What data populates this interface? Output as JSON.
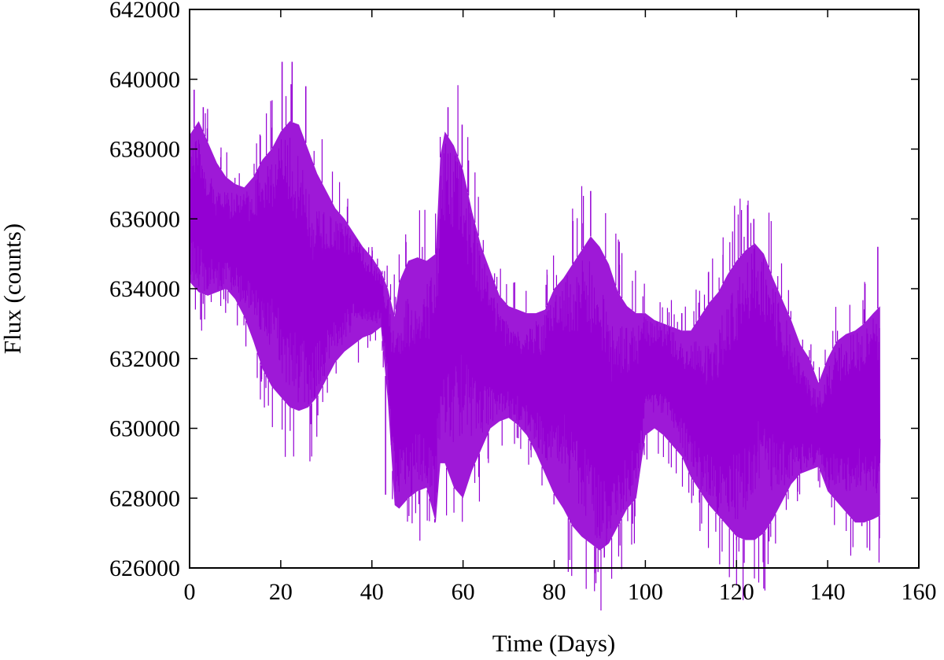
{
  "chart_data": {
    "type": "line",
    "title": "",
    "xlabel": "Time (Days)",
    "ylabel": "Flux (counts)",
    "xlim": [
      0,
      160
    ],
    "ylim": [
      626000,
      642000
    ],
    "xticks": [
      0,
      20,
      40,
      60,
      80,
      100,
      120,
      140,
      160
    ],
    "yticks": [
      626000,
      628000,
      630000,
      632000,
      634000,
      636000,
      638000,
      640000,
      642000
    ],
    "grid": false,
    "legend": "none",
    "series": [
      {
        "color": "#9400d3",
        "x": [
          0,
          2,
          4,
          6,
          8,
          10,
          12,
          14,
          16,
          18,
          20,
          22,
          24,
          26,
          28,
          30,
          32,
          34,
          36,
          38,
          40,
          42,
          43.5,
          45,
          46,
          48,
          50,
          52,
          54,
          55,
          56,
          58,
          60,
          62,
          64,
          66,
          68,
          70,
          72,
          74,
          76,
          78,
          80,
          82,
          84,
          86,
          88,
          90,
          92,
          94,
          96,
          98,
          100,
          102,
          104,
          106,
          108,
          110,
          112,
          114,
          116,
          118,
          120,
          122,
          124,
          126,
          128,
          130,
          132,
          134,
          136,
          138,
          140,
          142,
          144,
          146,
          148,
          150,
          151.5
        ],
        "upper": [
          638400,
          638800,
          638200,
          637600,
          637200,
          637000,
          636900,
          637200,
          637700,
          638000,
          638500,
          638800,
          638700,
          638000,
          637300,
          636800,
          636300,
          636000,
          635600,
          635200,
          634900,
          634500,
          634000,
          633200,
          634200,
          634800,
          634900,
          634800,
          635000,
          637800,
          638500,
          638100,
          637400,
          636200,
          635200,
          634500,
          633800,
          633500,
          633400,
          633300,
          633300,
          633400,
          634000,
          634300,
          634700,
          635100,
          635500,
          635200,
          634700,
          633900,
          633500,
          633300,
          633300,
          633100,
          633000,
          632900,
          632800,
          632800,
          633200,
          633600,
          633900,
          634400,
          634800,
          635100,
          635300,
          635000,
          634300,
          633700,
          633100,
          632400,
          632000,
          631300,
          632000,
          632500,
          632700,
          632800,
          633000,
          633300,
          633500
        ],
        "lower": [
          634200,
          633900,
          633800,
          633900,
          634000,
          633700,
          633200,
          632500,
          631700,
          631200,
          630900,
          630600,
          630500,
          630600,
          630900,
          631400,
          631900,
          632200,
          632400,
          632600,
          632700,
          632900,
          630800,
          627800,
          627700,
          628000,
          628200,
          628300,
          627300,
          629000,
          629000,
          628300,
          628000,
          628800,
          629400,
          630000,
          630200,
          630300,
          630100,
          629800,
          629300,
          628700,
          628100,
          627700,
          627200,
          626900,
          626700,
          626500,
          626700,
          627200,
          627700,
          628000,
          629800,
          630000,
          629800,
          629500,
          629200,
          628600,
          628200,
          627800,
          627500,
          627200,
          626900,
          626800,
          626800,
          627000,
          627400,
          627900,
          628400,
          628700,
          628800,
          628900,
          628200,
          627900,
          627600,
          627300,
          627300,
          627400,
          627500
        ],
        "peaks": [
          [
            1,
            639700
          ],
          [
            3,
            639200
          ],
          [
            20.3,
            640500
          ],
          [
            22.5,
            640500
          ],
          [
            25.5,
            639800
          ],
          [
            43,
            628100
          ],
          [
            53.8,
            627300
          ],
          [
            56.7,
            639200
          ],
          [
            59.8,
            638700
          ],
          [
            88,
            636800
          ],
          [
            91,
            626300
          ],
          [
            108,
            633300
          ],
          [
            120,
            626800
          ],
          [
            123.8,
            636000
          ],
          [
            151,
            635200
          ],
          [
            147.5,
            627200
          ]
        ]
      }
    ]
  }
}
